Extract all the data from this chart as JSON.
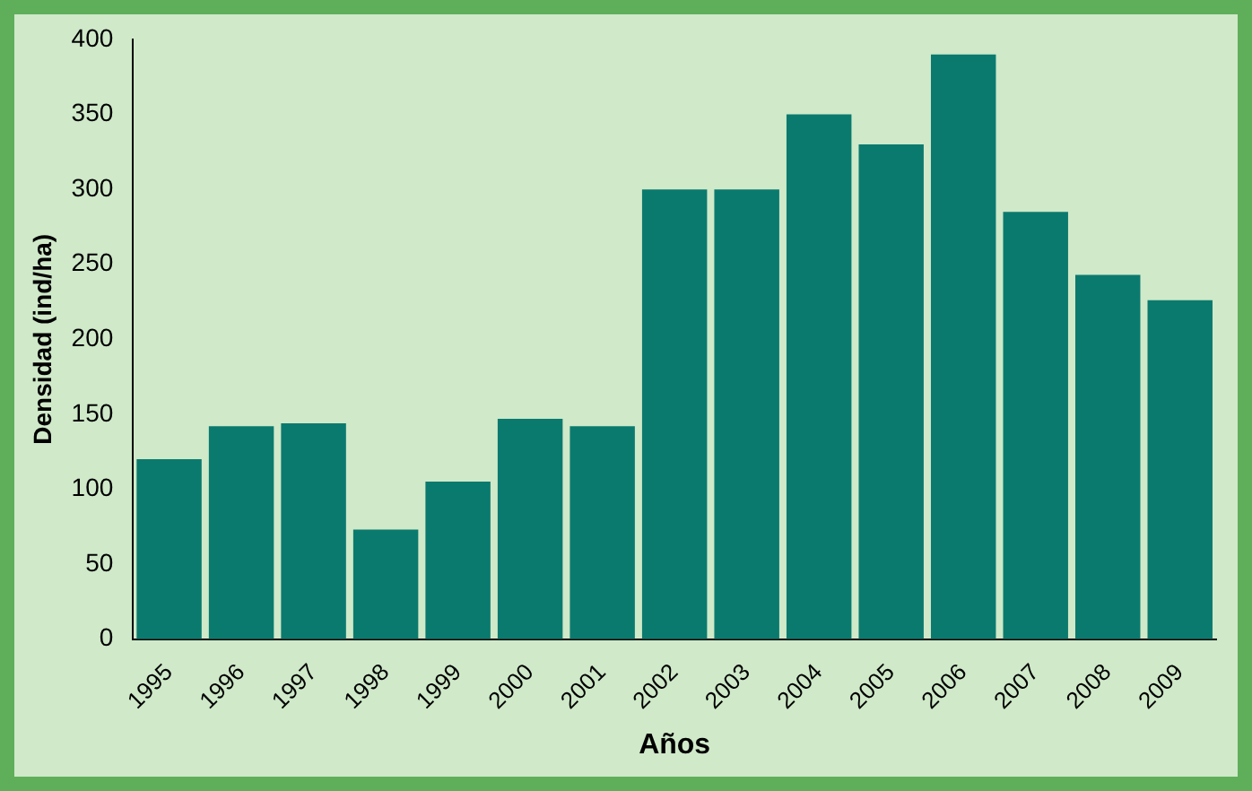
{
  "chart_data": {
    "type": "bar",
    "xlabel": "Años",
    "ylabel": "Densidad (ind/ha)",
    "categories": [
      "1995",
      "1996",
      "1997",
      "1998",
      "1999",
      "2000",
      "2001",
      "2002",
      "2003",
      "2004",
      "2005",
      "2006",
      "2007",
      "2008",
      "2009"
    ],
    "values": [
      120,
      142,
      144,
      73,
      105,
      147,
      142,
      300,
      300,
      350,
      330,
      390,
      285,
      243,
      226
    ],
    "color": "#0b7a6e",
    "ylim": [
      0,
      400
    ],
    "yticks": [
      0,
      50,
      100,
      150,
      200,
      250,
      300,
      350,
      400
    ],
    "grid": false,
    "legend": false
  }
}
